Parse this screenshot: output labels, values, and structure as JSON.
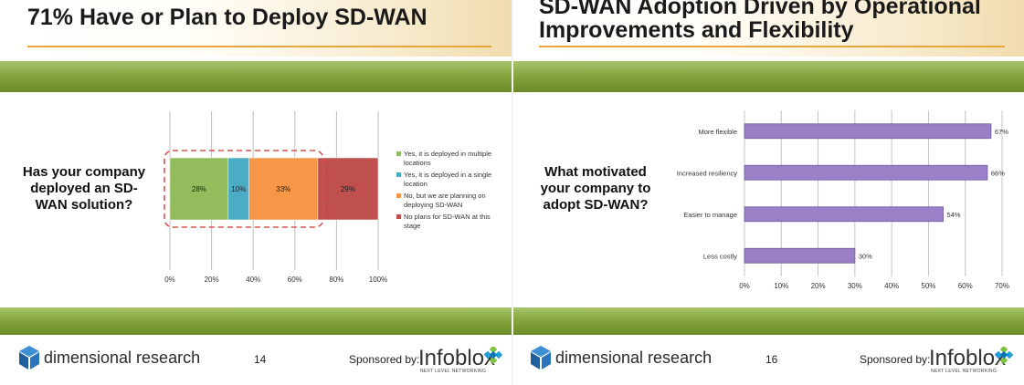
{
  "slides": [
    {
      "title": "71% Have or Plan to Deploy SD-WAN",
      "question": [
        "Has your company",
        "deployed an SD-",
        "WAN solution?"
      ],
      "page_number": "14"
    },
    {
      "title": [
        "SD-WAN Adoption Driven by Operational",
        "Improvements and Flexibility"
      ],
      "question": [
        "What motivated",
        "your company to",
        "adopt SD-WAN?"
      ],
      "page_number": "16"
    }
  ],
  "footer": {
    "brand": "dimensional research",
    "sponsor_label": "Sponsored by:",
    "sponsor_name": "Infoblox",
    "sponsor_tagline": "NEXT LEVEL NETWORKING"
  },
  "colors": {
    "green_band": "#86a63f",
    "title_underline": "#e9a63a",
    "highlight_border": "#d9534f",
    "bar_purple": "#9b7fc7"
  },
  "chart_data": [
    {
      "type": "bar",
      "orientation": "horizontal-stacked",
      "categories": [
        ""
      ],
      "series": [
        {
          "name": "Yes, it is deployed in multiple locations",
          "values": [
            28
          ],
          "label": "28%",
          "color": "#93bd5c"
        },
        {
          "name": "Yes, it is deployed in a single location",
          "values": [
            10
          ],
          "label": "10%",
          "color": "#4bacc6"
        },
        {
          "name": "No, but we are planning on deploying SD-WAN",
          "values": [
            33
          ],
          "label": "33%",
          "color": "#f79646"
        },
        {
          "name": "No plans for SD-WAN at this stage",
          "values": [
            29
          ],
          "label": "29%",
          "color": "#c0504d"
        }
      ],
      "legend_lines": [
        [
          "Yes, it is deployed in multiple",
          "locations"
        ],
        [
          "Yes, it is deployed in a single",
          "location"
        ],
        [
          "No, but we are planning on",
          "deploying SD-WAN"
        ],
        [
          "No plans for SD-WAN at this",
          "stage"
        ]
      ],
      "xlim": [
        0,
        100
      ],
      "xticks": [
        "0%",
        "20%",
        "40%",
        "60%",
        "80%",
        "100%"
      ],
      "grid": true,
      "legend_position": "right"
    },
    {
      "type": "bar",
      "orientation": "horizontal",
      "categories": [
        "More flexible",
        "Increased resiliency",
        "Easier to manage",
        "Less costly"
      ],
      "values": [
        67,
        66,
        54,
        30
      ],
      "labels": [
        "67%",
        "66%",
        "54%",
        "30%"
      ],
      "xlim": [
        0,
        70
      ],
      "xticks": [
        "0%",
        "10%",
        "20%",
        "30%",
        "40%",
        "50%",
        "60%",
        "70%"
      ],
      "grid": true,
      "color": "#9b7fc7"
    }
  ]
}
